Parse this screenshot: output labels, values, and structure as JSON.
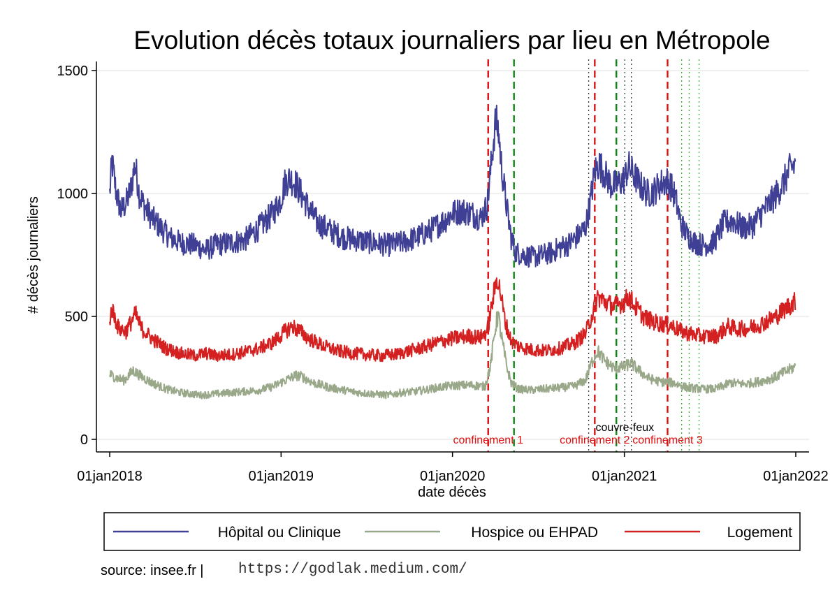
{
  "chart_data": {
    "type": "line",
    "title": "Evolution décès totaux journaliers par lieu en Métropole",
    "xlabel": "date décès",
    "ylabel": "# décès journaliers",
    "x_ticks": [
      "01jan2018",
      "01jan2019",
      "01jan2020",
      "01jan2021",
      "01jan2022"
    ],
    "y_ticks": [
      0,
      500,
      1000,
      1500
    ],
    "xlim": [
      "2018-01-01",
      "2022-01-01"
    ],
    "ylim": [
      -50,
      1560
    ],
    "grid": "horizontal",
    "legend_position": "bottom",
    "series": [
      {
        "name": "Hôpital ou Clinique",
        "color": "#3f3f95",
        "points": [
          [
            "2018-01-01",
            1000
          ],
          [
            "2018-01-06",
            1130
          ],
          [
            "2018-01-15",
            1000
          ],
          [
            "2018-01-25",
            930
          ],
          [
            "2018-02-05",
            960
          ],
          [
            "2018-02-15",
            1020
          ],
          [
            "2018-02-24",
            1120
          ],
          [
            "2018-03-05",
            1000
          ],
          [
            "2018-03-15",
            950
          ],
          [
            "2018-04-01",
            900
          ],
          [
            "2018-04-20",
            860
          ],
          [
            "2018-05-10",
            820
          ],
          [
            "2018-06-01",
            800
          ],
          [
            "2018-07-01",
            790
          ],
          [
            "2018-07-25",
            770
          ],
          [
            "2018-08-15",
            790
          ],
          [
            "2018-09-15",
            800
          ],
          [
            "2018-10-15",
            810
          ],
          [
            "2018-11-15",
            860
          ],
          [
            "2018-12-15",
            920
          ],
          [
            "2019-01-01",
            980
          ],
          [
            "2019-01-10",
            1050
          ],
          [
            "2019-01-20",
            1060
          ],
          [
            "2019-02-01",
            1040
          ],
          [
            "2019-02-15",
            990
          ],
          [
            "2019-03-01",
            940
          ],
          [
            "2019-03-20",
            880
          ],
          [
            "2019-04-15",
            850
          ],
          [
            "2019-05-15",
            820
          ],
          [
            "2019-06-15",
            810
          ],
          [
            "2019-07-15",
            800
          ],
          [
            "2019-08-15",
            790
          ],
          [
            "2019-09-15",
            800
          ],
          [
            "2019-10-15",
            820
          ],
          [
            "2019-11-15",
            850
          ],
          [
            "2019-12-15",
            890
          ],
          [
            "2020-01-01",
            920
          ],
          [
            "2020-01-20",
            930
          ],
          [
            "2020-02-10",
            920
          ],
          [
            "2020-03-01",
            900
          ],
          [
            "2020-03-15",
            950
          ],
          [
            "2020-03-25",
            1150
          ],
          [
            "2020-04-02",
            1300
          ],
          [
            "2020-04-08",
            1250
          ],
          [
            "2020-04-15",
            1100
          ],
          [
            "2020-04-25",
            950
          ],
          [
            "2020-05-05",
            820
          ],
          [
            "2020-05-15",
            760
          ],
          [
            "2020-06-01",
            750
          ],
          [
            "2020-06-20",
            740
          ],
          [
            "2020-07-10",
            750
          ],
          [
            "2020-08-01",
            760
          ],
          [
            "2020-08-15",
            780
          ],
          [
            "2020-09-01",
            790
          ],
          [
            "2020-09-20",
            820
          ],
          [
            "2020-10-10",
            860
          ],
          [
            "2020-10-20",
            960
          ],
          [
            "2020-10-30",
            1090
          ],
          [
            "2020-11-08",
            1120
          ],
          [
            "2020-11-20",
            1080
          ],
          [
            "2020-12-05",
            1030
          ],
          [
            "2020-12-20",
            1040
          ],
          [
            "2021-01-01",
            1060
          ],
          [
            "2021-01-10",
            1110
          ],
          [
            "2021-01-20",
            1080
          ],
          [
            "2021-02-05",
            1030
          ],
          [
            "2021-02-20",
            1000
          ],
          [
            "2021-03-05",
            1010
          ],
          [
            "2021-03-20",
            1040
          ],
          [
            "2021-04-01",
            1050
          ],
          [
            "2021-04-10",
            1030
          ],
          [
            "2021-04-20",
            980
          ],
          [
            "2021-05-01",
            880
          ],
          [
            "2021-05-15",
            830
          ],
          [
            "2021-06-01",
            800
          ],
          [
            "2021-06-20",
            790
          ],
          [
            "2021-07-10",
            800
          ],
          [
            "2021-08-01",
            880
          ],
          [
            "2021-08-20",
            890
          ],
          [
            "2021-09-10",
            860
          ],
          [
            "2021-10-01",
            870
          ],
          [
            "2021-10-20",
            920
          ],
          [
            "2021-11-15",
            980
          ],
          [
            "2021-12-05",
            1040
          ],
          [
            "2021-12-20",
            1100
          ],
          [
            "2021-12-31",
            1120
          ]
        ]
      },
      {
        "name": "Hospice ou EHPAD",
        "color": "#9aa88a",
        "points": [
          [
            "2018-01-01",
            265
          ],
          [
            "2018-01-15",
            250
          ],
          [
            "2018-02-01",
            240
          ],
          [
            "2018-02-20",
            280
          ],
          [
            "2018-03-10",
            255
          ],
          [
            "2018-04-01",
            230
          ],
          [
            "2018-05-01",
            205
          ],
          [
            "2018-06-01",
            190
          ],
          [
            "2018-07-15",
            180
          ],
          [
            "2018-08-15",
            185
          ],
          [
            "2018-09-15",
            190
          ],
          [
            "2018-10-15",
            195
          ],
          [
            "2018-11-15",
            200
          ],
          [
            "2018-12-15",
            215
          ],
          [
            "2019-01-10",
            240
          ],
          [
            "2019-02-01",
            260
          ],
          [
            "2019-02-15",
            255
          ],
          [
            "2019-03-10",
            230
          ],
          [
            "2019-04-15",
            210
          ],
          [
            "2019-05-15",
            200
          ],
          [
            "2019-06-15",
            190
          ],
          [
            "2019-07-15",
            185
          ],
          [
            "2019-08-15",
            180
          ],
          [
            "2019-09-15",
            190
          ],
          [
            "2019-10-15",
            195
          ],
          [
            "2019-11-15",
            205
          ],
          [
            "2019-12-15",
            215
          ],
          [
            "2020-01-15",
            220
          ],
          [
            "2020-02-15",
            220
          ],
          [
            "2020-03-10",
            215
          ],
          [
            "2020-03-22",
            300
          ],
          [
            "2020-04-01",
            450
          ],
          [
            "2020-04-07",
            510
          ],
          [
            "2020-04-14",
            420
          ],
          [
            "2020-04-25",
            300
          ],
          [
            "2020-05-05",
            230
          ],
          [
            "2020-05-20",
            205
          ],
          [
            "2020-06-15",
            200
          ],
          [
            "2020-07-15",
            205
          ],
          [
            "2020-08-15",
            210
          ],
          [
            "2020-09-15",
            215
          ],
          [
            "2020-10-10",
            240
          ],
          [
            "2020-10-25",
            320
          ],
          [
            "2020-11-05",
            360
          ],
          [
            "2020-11-20",
            320
          ],
          [
            "2020-12-10",
            290
          ],
          [
            "2021-01-01",
            295
          ],
          [
            "2021-01-15",
            310
          ],
          [
            "2021-02-01",
            280
          ],
          [
            "2021-02-20",
            250
          ],
          [
            "2021-03-15",
            235
          ],
          [
            "2021-04-15",
            230
          ],
          [
            "2021-05-15",
            210
          ],
          [
            "2021-06-15",
            205
          ],
          [
            "2021-07-15",
            205
          ],
          [
            "2021-08-15",
            230
          ],
          [
            "2021-09-15",
            225
          ],
          [
            "2021-10-15",
            235
          ],
          [
            "2021-11-15",
            250
          ],
          [
            "2021-12-10",
            275
          ],
          [
            "2021-12-31",
            295
          ]
        ]
      },
      {
        "name": "Logement",
        "color": "#d42020",
        "points": [
          [
            "2018-01-01",
            490
          ],
          [
            "2018-01-06",
            530
          ],
          [
            "2018-01-20",
            450
          ],
          [
            "2018-02-05",
            440
          ],
          [
            "2018-02-25",
            510
          ],
          [
            "2018-03-10",
            450
          ],
          [
            "2018-04-01",
            410
          ],
          [
            "2018-05-01",
            370
          ],
          [
            "2018-06-01",
            350
          ],
          [
            "2018-07-01",
            340
          ],
          [
            "2018-07-25",
            350
          ],
          [
            "2018-08-15",
            340
          ],
          [
            "2018-09-15",
            345
          ],
          [
            "2018-10-15",
            355
          ],
          [
            "2018-11-15",
            370
          ],
          [
            "2018-12-15",
            395
          ],
          [
            "2019-01-10",
            440
          ],
          [
            "2019-01-25",
            460
          ],
          [
            "2019-02-10",
            440
          ],
          [
            "2019-03-01",
            410
          ],
          [
            "2019-04-01",
            380
          ],
          [
            "2019-05-01",
            360
          ],
          [
            "2019-06-01",
            350
          ],
          [
            "2019-07-01",
            345
          ],
          [
            "2019-08-01",
            340
          ],
          [
            "2019-09-01",
            345
          ],
          [
            "2019-10-01",
            360
          ],
          [
            "2019-11-01",
            375
          ],
          [
            "2019-12-01",
            395
          ],
          [
            "2020-01-01",
            410
          ],
          [
            "2020-02-01",
            420
          ],
          [
            "2020-03-01",
            415
          ],
          [
            "2020-03-15",
            440
          ],
          [
            "2020-03-28",
            580
          ],
          [
            "2020-04-05",
            660
          ],
          [
            "2020-04-12",
            600
          ],
          [
            "2020-04-22",
            480
          ],
          [
            "2020-05-05",
            400
          ],
          [
            "2020-05-20",
            380
          ],
          [
            "2020-06-15",
            365
          ],
          [
            "2020-07-15",
            360
          ],
          [
            "2020-08-15",
            370
          ],
          [
            "2020-09-15",
            390
          ],
          [
            "2020-10-10",
            430
          ],
          [
            "2020-10-25",
            510
          ],
          [
            "2020-11-05",
            580
          ],
          [
            "2020-11-20",
            560
          ],
          [
            "2020-12-10",
            540
          ],
          [
            "2021-01-01",
            560
          ],
          [
            "2021-01-10",
            580
          ],
          [
            "2021-01-25",
            540
          ],
          [
            "2021-02-10",
            500
          ],
          [
            "2021-03-01",
            480
          ],
          [
            "2021-03-20",
            470
          ],
          [
            "2021-04-10",
            465
          ],
          [
            "2021-05-01",
            440
          ],
          [
            "2021-05-20",
            430
          ],
          [
            "2021-06-15",
            420
          ],
          [
            "2021-07-15",
            420
          ],
          [
            "2021-08-10",
            460
          ],
          [
            "2021-08-25",
            450
          ],
          [
            "2021-09-20",
            450
          ],
          [
            "2021-10-20",
            470
          ],
          [
            "2021-11-20",
            500
          ],
          [
            "2021-12-15",
            540
          ],
          [
            "2021-12-31",
            560
          ]
        ]
      }
    ],
    "vlines": [
      {
        "date": "2020-03-17",
        "color": "#dd1111",
        "style": "dashed",
        "label": "confinement 1",
        "label_color": "#dd1111"
      },
      {
        "date": "2020-05-11",
        "color": "#118811",
        "style": "dashed"
      },
      {
        "date": "2020-10-30",
        "color": "#dd1111",
        "style": "dashed",
        "label": "confinement 2",
        "label_color": "#dd1111"
      },
      {
        "date": "2020-12-15",
        "color": "#118811",
        "style": "dashed"
      },
      {
        "date": "2020-10-17",
        "color": "#333333",
        "style": "dotted"
      },
      {
        "date": "2021-01-02",
        "color": "#333333",
        "style": "dotted",
        "label": "couvre-feux",
        "label_color": "#000000"
      },
      {
        "date": "2021-01-16",
        "color": "#333333",
        "style": "dotted"
      },
      {
        "date": "2021-04-03",
        "color": "#dd1111",
        "style": "dashed",
        "label": "confinement 3",
        "label_color": "#dd1111"
      },
      {
        "date": "2021-05-03",
        "color": "#33aa33",
        "style": "dotted"
      },
      {
        "date": "2021-05-19",
        "color": "#33aa33",
        "style": "dotted"
      },
      {
        "date": "2021-06-09",
        "color": "#33aa33",
        "style": "dotted"
      }
    ]
  },
  "footer": {
    "source_label": "source: insee.fr |",
    "url": "https://godlak.medium.com/"
  }
}
